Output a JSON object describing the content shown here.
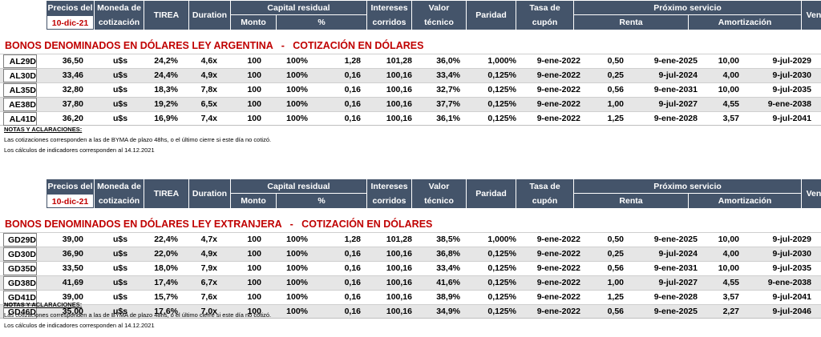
{
  "header": {
    "precios_del": "Precios del",
    "date": "10-dic-21",
    "moneda_top": "Moneda de",
    "moneda_bottom": "cotización",
    "tirea": "TIREA",
    "duration": "Duration",
    "capital": "Capital residual",
    "monto": "Monto",
    "pct": "%",
    "intereses_top": "Intereses",
    "intereses_bottom": "corridos",
    "valor_top": "Valor",
    "valor_bottom": "técnico",
    "paridad": "Paridad",
    "tasa_top": "Tasa de",
    "tasa_bottom": "cupón",
    "proximo": "Próximo servicio",
    "renta": "Renta",
    "amortizacion": "Amortización",
    "vencimiento": "Vencimiento"
  },
  "tables": [
    {
      "title": "BONOS DENOMINADOS EN DÓLARES LEY ARGENTINA   -   COTIZACIÓN EN DÓLARES",
      "rows": [
        [
          "AL29D",
          "36,50",
          "u$s",
          "24,2%",
          "4,6x",
          "100",
          "100%",
          "1,28",
          "101,28",
          "36,0%",
          "1,000%",
          "9-ene-2022",
          "0,50",
          "9-ene-2025",
          "10,00",
          "9-jul-2029"
        ],
        [
          "AL30D",
          "33,46",
          "u$s",
          "24,4%",
          "4,9x",
          "100",
          "100%",
          "0,16",
          "100,16",
          "33,4%",
          "0,125%",
          "9-ene-2022",
          "0,25",
          "9-jul-2024",
          "4,00",
          "9-jul-2030"
        ],
        [
          "AL35D",
          "32,80",
          "u$s",
          "18,3%",
          "7,8x",
          "100",
          "100%",
          "0,16",
          "100,16",
          "32,7%",
          "0,125%",
          "9-ene-2022",
          "0,56",
          "9-ene-2031",
          "10,00",
          "9-jul-2035"
        ],
        [
          "AE38D",
          "37,80",
          "u$s",
          "19,2%",
          "6,5x",
          "100",
          "100%",
          "0,16",
          "100,16",
          "37,7%",
          "0,125%",
          "9-ene-2022",
          "1,00",
          "9-jul-2027",
          "4,55",
          "9-ene-2038"
        ],
        [
          "AL41D",
          "36,20",
          "u$s",
          "16,9%",
          "7,4x",
          "100",
          "100%",
          "0,16",
          "100,16",
          "36,1%",
          "0,125%",
          "9-ene-2022",
          "1,25",
          "9-ene-2028",
          "3,57",
          "9-jul-2041"
        ]
      ]
    },
    {
      "title": "BONOS DENOMINADOS EN DÓLARES LEY EXTRANJERA   -   COTIZACIÓN EN DÓLARES",
      "rows": [
        [
          "GD29D",
          "39,00",
          "u$s",
          "22,4%",
          "4,7x",
          "100",
          "100%",
          "1,28",
          "101,28",
          "38,5%",
          "1,000%",
          "9-ene-2022",
          "0,50",
          "9-ene-2025",
          "10,00",
          "9-jul-2029"
        ],
        [
          "GD30D",
          "36,90",
          "u$s",
          "22,0%",
          "4,9x",
          "100",
          "100%",
          "0,16",
          "100,16",
          "36,8%",
          "0,125%",
          "9-ene-2022",
          "0,25",
          "9-jul-2024",
          "4,00",
          "9-jul-2030"
        ],
        [
          "GD35D",
          "33,50",
          "u$s",
          "18,0%",
          "7,9x",
          "100",
          "100%",
          "0,16",
          "100,16",
          "33,4%",
          "0,125%",
          "9-ene-2022",
          "0,56",
          "9-ene-2031",
          "10,00",
          "9-jul-2035"
        ],
        [
          "GD38D",
          "41,69",
          "u$s",
          "17,4%",
          "6,7x",
          "100",
          "100%",
          "0,16",
          "100,16",
          "41,6%",
          "0,125%",
          "9-ene-2022",
          "1,00",
          "9-jul-2027",
          "4,55",
          "9-ene-2038"
        ],
        [
          "GD41D",
          "39,00",
          "u$s",
          "15,7%",
          "7,6x",
          "100",
          "100%",
          "0,16",
          "100,16",
          "38,9%",
          "0,125%",
          "9-ene-2022",
          "1,25",
          "9-ene-2028",
          "3,57",
          "9-jul-2041"
        ],
        [
          "GD46D",
          "35,00",
          "u$s",
          "17,6%",
          "7,0x",
          "100",
          "100%",
          "0,16",
          "100,16",
          "34,9%",
          "0,125%",
          "9-ene-2022",
          "0,56",
          "9-ene-2025",
          "2,27",
          "9-jul-2046"
        ]
      ]
    }
  ],
  "notes": {
    "heading": "NOTAS Y ACLARACIONES:",
    "line1": "Las cotizaciones corresponden a las de BYMA de plazo 48hs, o el último cierre si este día no cotizó.",
    "line2": "Los cálculos de indicadores corresponden al 14.12.2021"
  },
  "colors": {
    "header_bg": "#44546a",
    "accent_red": "#c00000",
    "alt_row": "#e6e6e6"
  }
}
